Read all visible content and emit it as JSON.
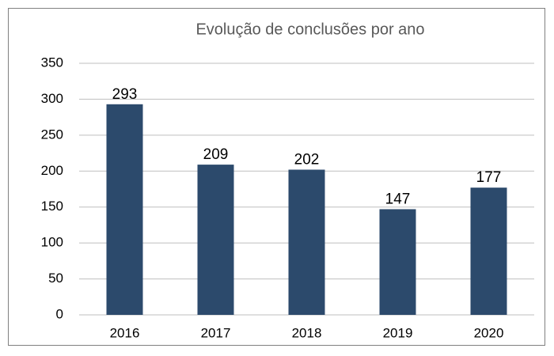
{
  "chart_data": {
    "type": "bar",
    "title": "Evolução de conclusões por ano",
    "categories": [
      "2016",
      "2017",
      "2018",
      "2019",
      "2020"
    ],
    "values": [
      293,
      209,
      202,
      147,
      177
    ],
    "color": "#2c4a6c",
    "ylim": [
      0,
      350
    ],
    "yticks": [
      0,
      50,
      100,
      150,
      200,
      250,
      300,
      350
    ],
    "grid": true
  }
}
